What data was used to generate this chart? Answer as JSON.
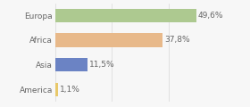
{
  "categories": [
    "Europa",
    "Africa",
    "Asia",
    "America"
  ],
  "values": [
    49.6,
    37.8,
    11.5,
    1.1
  ],
  "labels": [
    "49,6%",
    "37,8%",
    "11,5%",
    "1,1%"
  ],
  "bar_colors": [
    "#adc990",
    "#e8b98a",
    "#6b83c4",
    "#e8c86a"
  ],
  "background_color": "#f7f7f7",
  "xlim": [
    0,
    58
  ],
  "bar_height": 0.55,
  "label_fontsize": 6.5,
  "category_fontsize": 6.5,
  "text_color": "#666666",
  "grid_color": "#d8d8d8"
}
